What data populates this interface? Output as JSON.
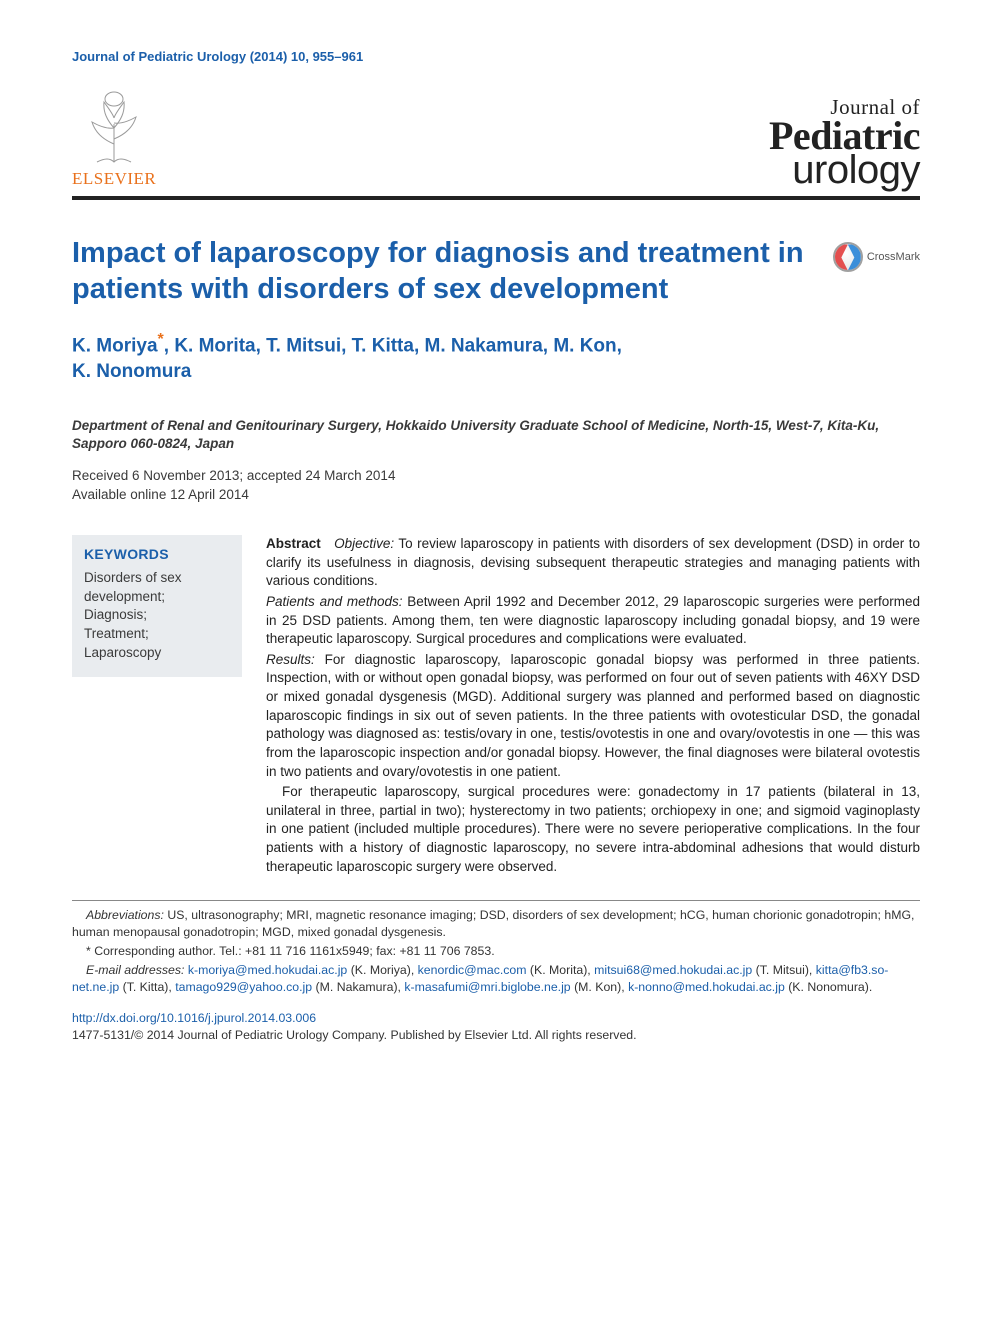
{
  "running_head": "Journal of Pediatric Urology (2014) 10, 955–961",
  "publisher": {
    "name": "ELSEVIER"
  },
  "journal_logo": {
    "line1": "Journal of",
    "line2": "Pediatric",
    "line3": "urology"
  },
  "crossmark": {
    "label": "CrossMark"
  },
  "article": {
    "title": "Impact of laparoscopy for diagnosis and treatment in patients with disorders of sex development",
    "authors_line1": "K. Moriya*, K. Morita, T. Mitsui, T. Kitta, M. Nakamura, M. Kon,",
    "authors_line2": "K. Nonomura",
    "affiliation": "Department of Renal and Genitourinary Surgery, Hokkaido University Graduate School of Medicine, North-15, West-7, Kita-Ku, Sapporo 060-0824, Japan",
    "received": "Received 6 November 2013; accepted 24 March 2014",
    "online": "Available online 12 April 2014"
  },
  "keywords": {
    "heading": "KEYWORDS",
    "items": "Disorders of sex development;\nDiagnosis;\nTreatment;\nLaparoscopy"
  },
  "abstract": {
    "lead": "Abstract",
    "objective_h": "Objective:",
    "objective": " To review laparoscopy in patients with disorders of sex development (DSD) in order to clarify its usefulness in diagnosis, devising subsequent therapeutic strategies and managing patients with various conditions.",
    "methods_h": "Patients and methods:",
    "methods": " Between April 1992 and December 2012, 29 laparoscopic surgeries were performed in 25 DSD patients. Among them, ten were diagnostic laparoscopy including gonadal biopsy, and 19 were therapeutic laparoscopy. Surgical procedures and complications were evaluated.",
    "results_h": "Results:",
    "results": " For diagnostic laparoscopy, laparoscopic gonadal biopsy was performed in three patients. Inspection, with or without open gonadal biopsy, was performed on four out of seven patients with 46XY DSD or mixed gonadal dysgenesis (MGD). Additional surgery was planned and performed based on diagnostic laparoscopic findings in six out of seven patients. In the three patients with ovotesticular DSD, the gonadal pathology was diagnosed as: testis/ovary in one, testis/ovotestis in one and ovary/ovotestis in one — this was from the laparoscopic inspection and/or gonadal biopsy. However, the final diagnoses were bilateral ovotestis in two patients and ovary/ovotestis in one patient.",
    "results2": "For therapeutic laparoscopy, surgical procedures were: gonadectomy in 17 patients (bilateral in 13, unilateral in three, partial in two); hysterectomy in two patients; orchiopexy in one; and sigmoid vaginoplasty in one patient (included multiple procedures). There were no severe perioperative complications. In the four patients with a history of diagnostic laparoscopy, no severe intra-abdominal adhesions that would disturb therapeutic laparoscopic surgery were observed."
  },
  "footnotes": {
    "abbrev_lead": "Abbreviations:",
    "abbrev": " US, ultrasonography; MRI, magnetic resonance imaging; DSD, disorders of sex development; hCG, human chorionic gonadotropin; hMG, human menopausal gonadotropin; MGD, mixed gonadal dysgenesis.",
    "corr": "* Corresponding author. Tel.: +81 11 716 1161x5949; fax: +81 11 706 7853.",
    "email_lead": "E-mail addresses:",
    "emails": [
      {
        "addr": "k-moriya@med.hokudai.ac.jp",
        "who": " (K. Moriya), "
      },
      {
        "addr": "kenordic@mac.com",
        "who": " (K. Morita), "
      },
      {
        "addr": "mitsui68@med.hokudai.ac.jp",
        "who": " (T. Mitsui), "
      },
      {
        "addr": "kitta@fb3.so-net.ne.jp",
        "who": " (T. Kitta), "
      },
      {
        "addr": "tamago929@yahoo.co.jp",
        "who": " (M. Nakamura), "
      },
      {
        "addr": "k-masafumi@mri.biglobe.ne.jp",
        "who": " (M. Kon), "
      },
      {
        "addr": "k-nonno@med.hokudai.ac.jp",
        "who": " (K. Nonomura)."
      }
    ]
  },
  "doi": {
    "url": "http://dx.doi.org/10.1016/j.jpurol.2014.03.006",
    "copyright": "1477-5131/© 2014 Journal of Pediatric Urology Company. Published by Elsevier Ltd. All rights reserved."
  },
  "colors": {
    "link": "#1b5faa",
    "elsevier": "#e9711c",
    "rule": "#222222",
    "kw_bg": "#e9ecef"
  }
}
